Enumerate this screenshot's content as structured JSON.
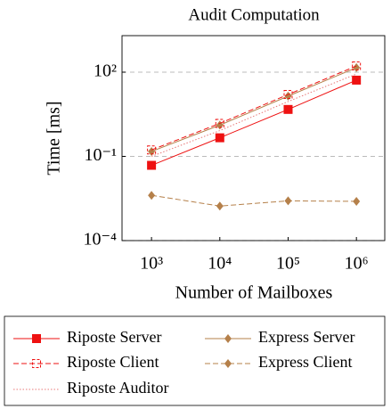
{
  "chart_data": {
    "type": "line",
    "title": "Audit Computation",
    "xlabel": "Number of Mailboxes",
    "ylabel": "Time [ms]",
    "xlog": true,
    "ylog": true,
    "grid": "y",
    "x": [
      1000,
      10000,
      100000,
      1000000
    ],
    "xlim": [
      370,
      2600000
    ],
    "xticks": [
      {
        "value": 1000,
        "label": "10³"
      },
      {
        "value": 10000,
        "label": "10⁴"
      },
      {
        "value": 100000,
        "label": "10⁵"
      },
      {
        "value": 1000000,
        "label": "10⁶"
      }
    ],
    "ylim": [
      0.0001,
      2000
    ],
    "yticks": [
      {
        "value": 0.0001,
        "label": "10⁻⁴"
      },
      {
        "value": 0.1,
        "label": "10⁻¹"
      },
      {
        "value": 100,
        "label": "10²"
      }
    ],
    "series": [
      {
        "name": "Riposte Server",
        "color": "#ee1111",
        "dash": "solid",
        "marker": "square",
        "values": [
          0.048,
          0.46,
          4.7,
          52
        ]
      },
      {
        "name": "Express Server",
        "color": "#b5804a",
        "dash": "solid",
        "marker": "diamond",
        "values": [
          0.15,
          1.3,
          14,
          145
        ]
      },
      {
        "name": "Riposte Client",
        "color": "#ee1111",
        "dash": "dashed",
        "marker": "open-square",
        "values": [
          0.17,
          1.5,
          16,
          166
        ]
      },
      {
        "name": "Express Client",
        "color": "#b5804a",
        "dash": "dashed",
        "marker": "diamond",
        "values": [
          0.0041,
          0.0017,
          0.0026,
          0.0025
        ]
      },
      {
        "name": "Riposte Auditor",
        "color": "#e87878",
        "dash": "dotted",
        "marker": "none",
        "values": [
          0.1,
          0.83,
          9,
          86
        ]
      }
    ]
  }
}
